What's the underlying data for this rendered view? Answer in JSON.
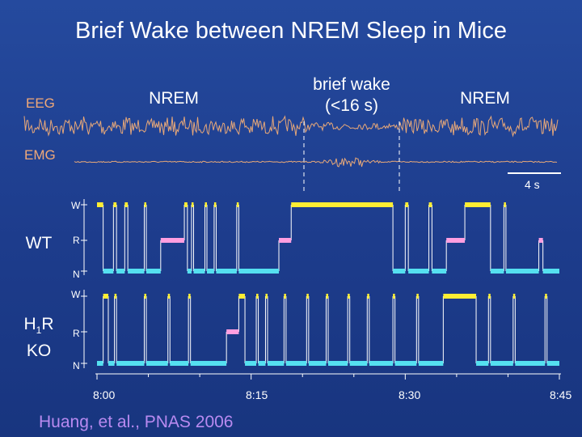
{
  "title": "Brief Wake between NREM Sleep in Mice",
  "trace_labels": {
    "eeg": "EEG",
    "emg": "EMG"
  },
  "stage_labels": {
    "nrem_left": "NREM",
    "brief_wake_line1": "brief wake",
    "brief_wake_line2": "(<16 s)",
    "nrem_right": "NREM"
  },
  "scale_bar_label": "4 s",
  "hypnogram_ticks": {
    "wake": "W",
    "rem": "R",
    "nrem": "N"
  },
  "panels": {
    "wt": {
      "label": "WT"
    },
    "ko": {
      "label_main": "H",
      "label_sub": "1",
      "label_rest": "R",
      "label_line2": "KO"
    }
  },
  "time_axis": [
    "8:00",
    "8:15",
    "8:30",
    "8:45"
  ],
  "citation": "Huang, et al., PNAS 2006",
  "colors": {
    "background": "#1f4496",
    "eeg_trace": "#e8a878",
    "emg_trace": "#e8a878",
    "wake": "#ffee33",
    "rem": "#ff9ee0",
    "nrem": "#55e0f0",
    "transition_line": "#ffffff",
    "citation": "#b88af0"
  },
  "chart_data": [
    {
      "type": "line",
      "name": "WT hypnogram",
      "state_levels": [
        "W",
        "R",
        "N"
      ],
      "x_range_min": [
        0,
        45
      ],
      "x_tick_labels": [
        "8:00",
        "8:15",
        "8:30",
        "8:45"
      ],
      "segments": [
        {
          "state": "W",
          "start": 0.0,
          "end": 0.6
        },
        {
          "state": "N",
          "start": 0.6,
          "end": 1.6
        },
        {
          "state": "W",
          "start": 1.6,
          "end": 1.9
        },
        {
          "state": "N",
          "start": 1.9,
          "end": 2.7
        },
        {
          "state": "W",
          "start": 2.7,
          "end": 3.0
        },
        {
          "state": "N",
          "start": 3.0,
          "end": 4.6
        },
        {
          "state": "W",
          "start": 4.6,
          "end": 4.8
        },
        {
          "state": "N",
          "start": 4.8,
          "end": 6.2
        },
        {
          "state": "R",
          "start": 6.2,
          "end": 8.5
        },
        {
          "state": "W",
          "start": 8.5,
          "end": 8.8
        },
        {
          "state": "N",
          "start": 8.8,
          "end": 9.2
        },
        {
          "state": "W",
          "start": 9.2,
          "end": 9.4
        },
        {
          "state": "N",
          "start": 9.4,
          "end": 10.5
        },
        {
          "state": "W",
          "start": 10.5,
          "end": 10.7
        },
        {
          "state": "N",
          "start": 10.7,
          "end": 11.4
        },
        {
          "state": "W",
          "start": 11.4,
          "end": 11.6
        },
        {
          "state": "N",
          "start": 11.6,
          "end": 13.6
        },
        {
          "state": "W",
          "start": 13.6,
          "end": 13.8
        },
        {
          "state": "N",
          "start": 13.8,
          "end": 17.7
        },
        {
          "state": "R",
          "start": 17.7,
          "end": 18.9
        },
        {
          "state": "W",
          "start": 18.9,
          "end": 28.8
        },
        {
          "state": "N",
          "start": 28.8,
          "end": 30.0
        },
        {
          "state": "W",
          "start": 30.0,
          "end": 30.3
        },
        {
          "state": "N",
          "start": 30.3,
          "end": 32.3
        },
        {
          "state": "W",
          "start": 32.3,
          "end": 32.6
        },
        {
          "state": "N",
          "start": 32.6,
          "end": 34.0
        },
        {
          "state": "R",
          "start": 34.0,
          "end": 35.8
        },
        {
          "state": "W",
          "start": 35.8,
          "end": 38.3
        },
        {
          "state": "N",
          "start": 38.3,
          "end": 39.6
        },
        {
          "state": "W",
          "start": 39.6,
          "end": 39.8
        },
        {
          "state": "N",
          "start": 39.8,
          "end": 43.0
        },
        {
          "state": "R",
          "start": 43.0,
          "end": 43.4
        },
        {
          "state": "N",
          "start": 43.4,
          "end": 45.0
        }
      ]
    },
    {
      "type": "line",
      "name": "H1R KO hypnogram",
      "state_levels": [
        "W",
        "R",
        "N"
      ],
      "x_range_min": [
        0,
        45
      ],
      "x_tick_labels": [
        "8:00",
        "8:15",
        "8:30",
        "8:45"
      ],
      "segments": [
        {
          "state": "N",
          "start": 0.0,
          "end": 0.6
        },
        {
          "state": "W",
          "start": 0.6,
          "end": 1.1
        },
        {
          "state": "N",
          "start": 1.1,
          "end": 1.7
        },
        {
          "state": "W",
          "start": 1.7,
          "end": 1.9
        },
        {
          "state": "N",
          "start": 1.9,
          "end": 4.6
        },
        {
          "state": "W",
          "start": 4.6,
          "end": 4.8
        },
        {
          "state": "N",
          "start": 4.8,
          "end": 6.9
        },
        {
          "state": "W",
          "start": 6.9,
          "end": 7.1
        },
        {
          "state": "N",
          "start": 7.1,
          "end": 8.9
        },
        {
          "state": "W",
          "start": 8.9,
          "end": 9.1
        },
        {
          "state": "N",
          "start": 9.1,
          "end": 12.6
        },
        {
          "state": "R",
          "start": 12.6,
          "end": 13.8
        },
        {
          "state": "W",
          "start": 13.8,
          "end": 14.4
        },
        {
          "state": "N",
          "start": 14.4,
          "end": 15.5
        },
        {
          "state": "W",
          "start": 15.5,
          "end": 15.7
        },
        {
          "state": "N",
          "start": 15.7,
          "end": 16.4
        },
        {
          "state": "W",
          "start": 16.4,
          "end": 16.6
        },
        {
          "state": "N",
          "start": 16.6,
          "end": 18.2
        },
        {
          "state": "W",
          "start": 18.2,
          "end": 18.4
        },
        {
          "state": "N",
          "start": 18.4,
          "end": 20.4
        },
        {
          "state": "W",
          "start": 20.4,
          "end": 20.6
        },
        {
          "state": "N",
          "start": 20.6,
          "end": 22.3
        },
        {
          "state": "W",
          "start": 22.3,
          "end": 22.5
        },
        {
          "state": "N",
          "start": 22.5,
          "end": 24.4
        },
        {
          "state": "W",
          "start": 24.4,
          "end": 24.6
        },
        {
          "state": "N",
          "start": 24.6,
          "end": 26.3
        },
        {
          "state": "W",
          "start": 26.3,
          "end": 26.5
        },
        {
          "state": "N",
          "start": 26.5,
          "end": 28.8
        },
        {
          "state": "W",
          "start": 28.8,
          "end": 29.0
        },
        {
          "state": "N",
          "start": 29.0,
          "end": 31.1
        },
        {
          "state": "W",
          "start": 31.1,
          "end": 31.3
        },
        {
          "state": "N",
          "start": 31.3,
          "end": 33.7
        },
        {
          "state": "W",
          "start": 33.7,
          "end": 36.9
        },
        {
          "state": "N",
          "start": 36.9,
          "end": 38.1
        },
        {
          "state": "W",
          "start": 38.1,
          "end": 38.3
        },
        {
          "state": "N",
          "start": 38.3,
          "end": 40.5
        },
        {
          "state": "W",
          "start": 40.5,
          "end": 40.7
        },
        {
          "state": "N",
          "start": 40.7,
          "end": 43.6
        },
        {
          "state": "W",
          "start": 43.6,
          "end": 43.8
        },
        {
          "state": "N",
          "start": 43.8,
          "end": 45.0
        }
      ]
    }
  ]
}
